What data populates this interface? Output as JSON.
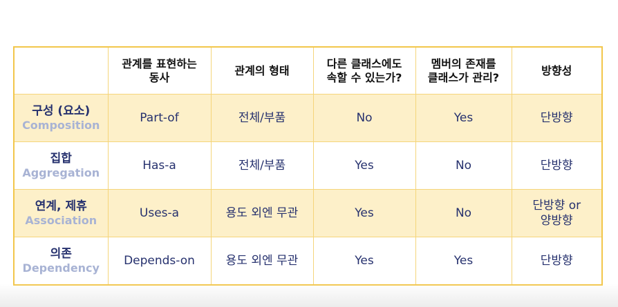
{
  "table": {
    "headers": [
      "",
      "관계를 표현하는\n동사",
      "관계의 형태",
      "다른 클래스에도\n속할 수 있는가?",
      "멤버의 존재를\n클래스가 관리?",
      "방향성"
    ],
    "rows": [
      {
        "label_ko": "구성 (요소)",
        "label_en": "Composition",
        "verb": "Part-of",
        "form": "전체/부품",
        "shared": "No",
        "managed": "Yes",
        "direction": "단방향"
      },
      {
        "label_ko": "집합",
        "label_en": "Aggregation",
        "verb": "Has-a",
        "form": "전체/부품",
        "shared": "Yes",
        "managed": "No",
        "direction": "단방향"
      },
      {
        "label_ko": "연계, 제휴",
        "label_en": "Association",
        "verb": "Uses-a",
        "form": "용도 외엔 무관",
        "shared": "Yes",
        "managed": "No",
        "direction": "단방향 or\n양방향"
      },
      {
        "label_ko": "의존",
        "label_en": "Dependency",
        "verb": "Depends-on",
        "form": "용도 외엔 무관",
        "shared": "Yes",
        "managed": "Yes",
        "direction": "단방향"
      }
    ]
  },
  "colors": {
    "border": "#f2c64a",
    "row_highlight": "#fdf0c9",
    "text_primary": "#26316e",
    "text_secondary": "#a8b3d4"
  }
}
